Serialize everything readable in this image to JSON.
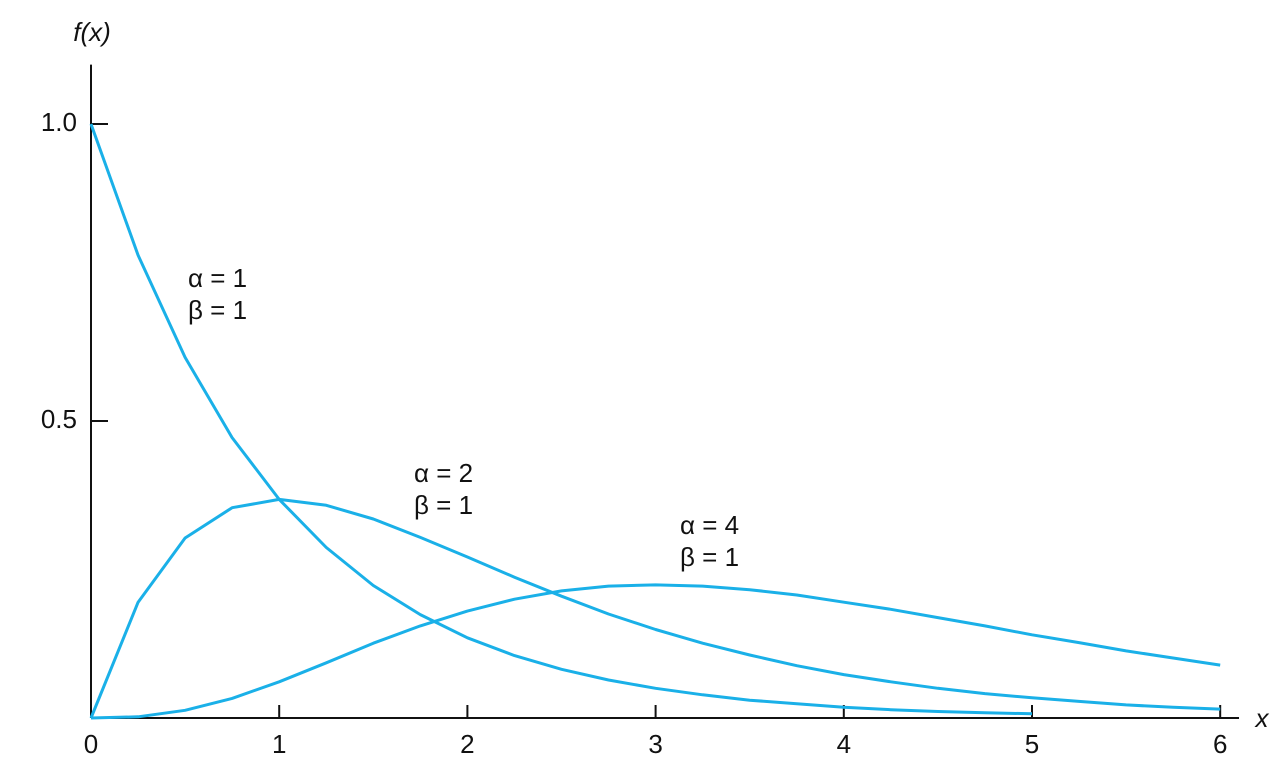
{
  "chart_data": {
    "type": "line",
    "y_label": "f(x)",
    "x_label": "x",
    "xlim": [
      0,
      6.1
    ],
    "ylim": [
      0,
      1.1
    ],
    "xticks": [
      0,
      1,
      2,
      3,
      4,
      5,
      6
    ],
    "yticks": [
      0.5,
      {
        "value": 1,
        "label": "1.0"
      }
    ],
    "x": [
      0,
      0.25,
      0.5,
      0.75,
      1,
      1.25,
      1.5,
      1.75,
      2,
      2.25,
      2.5,
      2.75,
      3,
      3.25,
      3.5,
      3.75,
      4,
      4.25,
      4.5,
      4.75,
      5,
      5.25,
      5.5,
      5.75,
      6
    ],
    "series": [
      {
        "annotation": [
          "α = 1",
          "β = 1"
        ],
        "color": "#1ab0e8",
        "values": [
          1,
          0.779,
          0.607,
          0.472,
          0.368,
          0.287,
          0.223,
          0.174,
          0.135,
          0.105,
          0.082,
          0.064,
          0.05,
          0.039,
          0.03,
          0.024,
          0.018,
          0.014,
          0.011,
          0.009,
          0.007,
          null,
          null,
          null,
          null
        ]
      },
      {
        "annotation": [
          "α = 2",
          "β = 1"
        ],
        "color": "#1ab0e8",
        "values": [
          0,
          0.195,
          0.303,
          0.354,
          0.368,
          0.358,
          0.335,
          0.304,
          0.271,
          0.237,
          0.205,
          0.175,
          0.149,
          0.126,
          0.106,
          0.088,
          0.073,
          0.061,
          0.05,
          0.041,
          0.034,
          0.028,
          0.022,
          0.018,
          0.015
        ]
      },
      {
        "annotation": [
          "α = 4",
          "β = 1"
        ],
        "color": "#1ab0e8",
        "values": [
          0,
          0.002,
          0.013,
          0.033,
          0.061,
          0.093,
          0.126,
          0.155,
          0.18,
          0.2,
          0.214,
          0.222,
          0.224,
          0.222,
          0.216,
          0.207,
          0.195,
          0.183,
          0.169,
          0.155,
          0.14,
          0.127,
          0.113,
          0.101,
          0.089
        ]
      }
    ]
  }
}
